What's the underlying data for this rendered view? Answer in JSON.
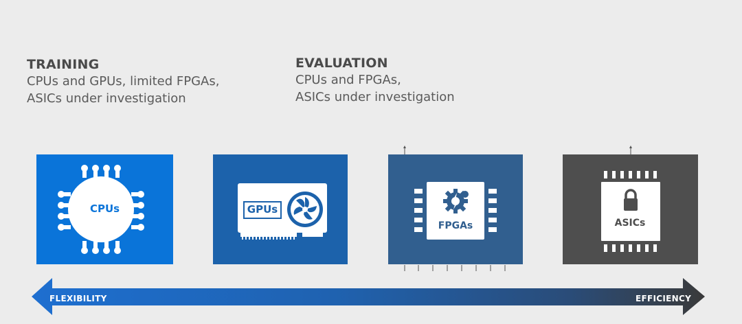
{
  "training": {
    "title": "TRAINING",
    "line1": "CPUs and GPUs, limited FPGAs,",
    "line2": "ASICs under investigation"
  },
  "evaluation": {
    "title": "EVALUATION",
    "line1": "CPUs and FPGAs,",
    "line2": "ASICs under investigation"
  },
  "tiles": {
    "cpu": {
      "label": "CPUs",
      "icon": "cpu-chip-icon",
      "color": "#0a74d9"
    },
    "gpu": {
      "label": "GPUs",
      "icon": "graphics-card-icon",
      "color": "#1c62ab"
    },
    "fpga": {
      "label": "FPGAs",
      "icon": "fpga-chip-icon",
      "color": "#315f8f"
    },
    "asic": {
      "label": "ASICs",
      "icon": "asic-chip-lock-icon",
      "color": "#4e4e4e"
    }
  },
  "arrow": {
    "left_label": "FLEXIBILITY",
    "right_label": "EFFICIENCY",
    "color_left": "#1e6fd0",
    "color_right": "#3a3a3a"
  }
}
